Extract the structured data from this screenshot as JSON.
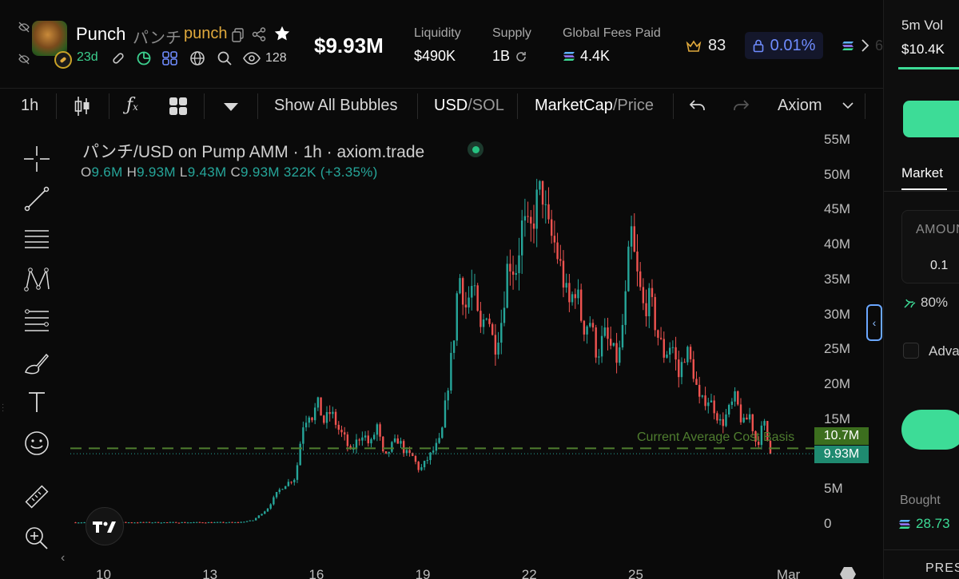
{
  "token": {
    "name": "Punch",
    "name_jp": "パンチ",
    "ticker": "punch",
    "age": "23d",
    "holders": "128",
    "market_cap": "$9.93M"
  },
  "stats": {
    "liquidity": {
      "label": "Liquidity",
      "value": "$490K"
    },
    "supply": {
      "label": "Supply",
      "value": "1B"
    },
    "fees": {
      "label": "Global Fees Paid",
      "value": "4.4K"
    },
    "crown_count": "83",
    "tax": "0.01%",
    "more_partial": "6"
  },
  "toolbar": {
    "interval": "1h",
    "show_bubbles": "Show All Bubbles",
    "currency_a": "USD",
    "currency_sep": "/",
    "currency_b": "SOL",
    "metric_a": "MarketCap",
    "metric_sep": "/",
    "metric_b": "Price",
    "provider": "Axiom"
  },
  "chart": {
    "title": "パンチ/USD on Pump AMM · 1h · axiom.trade",
    "ohlc": {
      "o_label": "O",
      "o": "9.6M",
      "h_label": "H",
      "h": "9.93M",
      "l_label": "L",
      "l": "9.43M",
      "c_label": "C",
      "c": "9.93M",
      "change": "322K (+3.35%)"
    },
    "cost_basis_label": "Current Average Cost Basis",
    "cost_basis_tag": "10.7M",
    "price_tag": "9.93M",
    "y_ticks": [
      "55M",
      "50M",
      "45M",
      "40M",
      "35M",
      "30M",
      "25M",
      "20M",
      "15M",
      "5M",
      "0"
    ],
    "x_ticks": [
      "10",
      "13",
      "16",
      "19",
      "22",
      "25",
      "Mar"
    ],
    "colors": {
      "up": "#26a69a",
      "down": "#ef5350",
      "cost_basis": "#4f7d2f"
    }
  },
  "chart_data": {
    "type": "candlestick",
    "title": "パンチ/USD on Pump AMM · 1h · axiom.trade",
    "ylabel": "",
    "ylim": [
      0,
      55
    ],
    "y_unit": "M",
    "x_ticks": [
      "10",
      "13",
      "16",
      "19",
      "22",
      "25",
      "Mar"
    ],
    "x_range_days": [
      9.2,
      29.5
    ],
    "series": [
      {
        "points": [
          [
            9.2,
            0.1
          ],
          [
            10.0,
            0.1
          ],
          [
            11.0,
            0.1
          ],
          [
            12.0,
            0.1
          ],
          [
            13.0,
            0.1
          ],
          [
            13.8,
            0.1
          ],
          [
            14.2,
            0.4
          ],
          [
            14.6,
            2.0
          ],
          [
            14.9,
            4.5
          ],
          [
            15.1,
            5.5
          ],
          [
            15.4,
            6.5
          ],
          [
            15.6,
            14.0
          ],
          [
            15.8,
            16.0
          ],
          [
            15.9,
            15.0
          ],
          [
            16.0,
            17.5
          ],
          [
            16.2,
            14.5
          ],
          [
            16.4,
            16.0
          ],
          [
            16.6,
            13.5
          ],
          [
            16.8,
            12.0
          ],
          [
            16.95,
            10.0
          ],
          [
            17.1,
            11.5
          ],
          [
            17.3,
            13.0
          ],
          [
            17.5,
            11.0
          ],
          [
            17.7,
            14.0
          ],
          [
            17.9,
            9.0
          ],
          [
            18.1,
            11.0
          ],
          [
            18.3,
            12.0
          ],
          [
            18.5,
            10.0
          ],
          [
            18.7,
            9.5
          ],
          [
            18.9,
            7.5
          ],
          [
            19.1,
            9.0
          ],
          [
            19.3,
            10.5
          ],
          [
            19.5,
            12.0
          ],
          [
            19.7,
            20.0
          ],
          [
            19.85,
            26.0
          ],
          [
            20.0,
            36.0
          ],
          [
            20.2,
            31.0
          ],
          [
            20.4,
            34.0
          ],
          [
            20.6,
            27.0
          ],
          [
            20.8,
            31.0
          ],
          [
            21.0,
            25.0
          ],
          [
            21.2,
            29.0
          ],
          [
            21.4,
            38.0
          ],
          [
            21.6,
            36.0
          ],
          [
            21.8,
            43.0
          ],
          [
            22.0,
            41.0
          ],
          [
            22.2,
            46.0
          ],
          [
            22.35,
            48.0
          ],
          [
            22.5,
            42.0
          ],
          [
            22.7,
            40.0
          ],
          [
            22.9,
            36.0
          ],
          [
            23.1,
            31.0
          ],
          [
            23.3,
            34.0
          ],
          [
            23.5,
            28.0
          ],
          [
            23.7,
            29.0
          ],
          [
            23.9,
            24.0
          ],
          [
            24.1,
            27.0
          ],
          [
            24.3,
            25.0
          ],
          [
            24.5,
            23.0
          ],
          [
            24.7,
            32.0
          ],
          [
            24.85,
            42.0
          ],
          [
            25.0,
            36.0
          ],
          [
            25.2,
            31.0
          ],
          [
            25.4,
            32.0
          ],
          [
            25.6,
            27.0
          ],
          [
            25.8,
            24.0
          ],
          [
            26.0,
            26.0
          ],
          [
            26.2,
            21.0
          ],
          [
            26.4,
            25.0
          ],
          [
            26.6,
            22.0
          ],
          [
            26.8,
            17.0
          ],
          [
            27.0,
            18.0
          ],
          [
            27.2,
            16.5
          ],
          [
            27.4,
            14.0
          ],
          [
            27.6,
            16.0
          ],
          [
            27.8,
            18.0
          ],
          [
            28.0,
            14.0
          ],
          [
            28.2,
            15.5
          ],
          [
            28.4,
            11.0
          ],
          [
            28.6,
            14.5
          ],
          [
            28.75,
            10.5
          ],
          [
            28.85,
            9.93
          ]
        ]
      }
    ],
    "cost_basis": 10.7,
    "last_price": 9.93
  },
  "right_panel": {
    "vol_label": "5m Vol",
    "vol_value": "$10.4K",
    "tab": "Market",
    "amount_label": "AMOUNT",
    "amount_value": "0.1",
    "slippage": "80%",
    "advanced": "Advanced",
    "bought_label": "Bought",
    "bought_value": "28.73",
    "presets_label": "PRESETS"
  }
}
